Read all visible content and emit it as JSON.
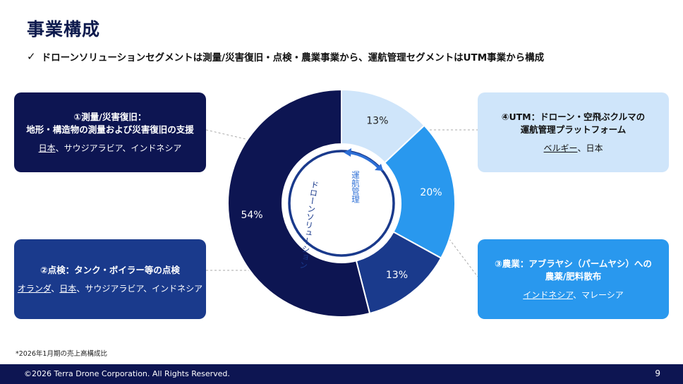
{
  "header": {
    "title": "事業構成",
    "check_icon": "check-icon",
    "subtitle": "ドローンソリューションセグメントは測量/災害復旧・点検・農業事業から、運航管理セグメントはUTM事業から構成"
  },
  "cards": {
    "survey": {
      "title_line1": "①測量/災害復旧：",
      "title_line2": "地形・構造物の測量および災害復旧の支援",
      "countries_underlined": "日本",
      "countries_rest": "、サウジアラビア、インドネシア"
    },
    "inspection": {
      "title_line1": "②点検：タンク・ボイラー等の点検",
      "countries_underlined_1": "オランダ",
      "countries_sep": "、",
      "countries_underlined_2": "日本",
      "countries_rest": "、サウジアラビア、インドネシア"
    },
    "agriculture": {
      "title_line1": "③農業：アブラヤシ（パームヤシ）への",
      "title_line2": "農薬/肥料散布",
      "countries_underlined": "インドネシア",
      "countries_rest": "、マレーシア"
    },
    "utm": {
      "title_line1": "④UTM：ドローン・空飛ぶクルマの",
      "title_line2": "運航管理プラットフォーム",
      "countries_underlined": "ベルギー",
      "countries_rest": "、日本"
    }
  },
  "chart_data": {
    "type": "pie",
    "categories": [
      "UTM",
      "農業",
      "点検",
      "測量/災害復旧"
    ],
    "values": [
      13,
      20,
      13,
      54
    ],
    "labels": [
      "13%",
      "20%",
      "13%",
      "54%"
    ],
    "colors": [
      "#cfe5fa",
      "#2998ee",
      "#1a3a8c",
      "#0d1552"
    ],
    "segments": {
      "operation": "運航管理",
      "drone": "ドローンソリューション"
    }
  },
  "footnote": "*2026年1月期の売上高構成比",
  "footer": {
    "copyright": "©2026 Terra Drone Corporation. All Rights Reserved.",
    "page": "9"
  }
}
